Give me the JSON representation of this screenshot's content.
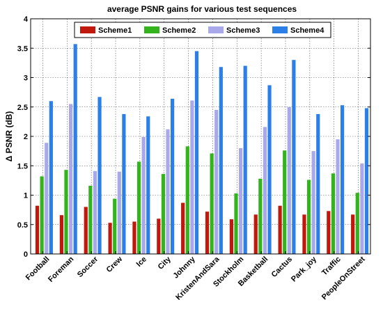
{
  "chart_data": {
    "type": "bar",
    "title": "average PSNR gains for various test sequences",
    "xlabel": "",
    "ylabel": "Δ PSNR  (dB)",
    "ylim": [
      0,
      4
    ],
    "yticks": [
      "0",
      "0.5",
      "1",
      "1.5",
      "2",
      "2.5",
      "3",
      "3.5",
      "4"
    ],
    "grid": true,
    "legend_position": "top",
    "categories": [
      "Football",
      "Foreman",
      "Soccer",
      "Crew",
      "Ice",
      "City",
      "Johnny",
      "KristenAndSara",
      "Stockholm",
      "Basketball",
      "Cactus",
      "Park_joy",
      "Traffic",
      "PeopleOnStreet"
    ],
    "series": [
      {
        "name": "Scheme1",
        "color": "#c0180c",
        "values": [
          0.82,
          0.66,
          0.8,
          0.53,
          0.55,
          0.6,
          0.87,
          0.72,
          0.59,
          0.67,
          0.82,
          0.67,
          0.73,
          0.67
        ]
      },
      {
        "name": "Scheme2",
        "color": "#33b41c",
        "values": [
          1.32,
          1.43,
          1.16,
          0.94,
          1.57,
          1.36,
          1.83,
          1.71,
          1.03,
          1.28,
          1.76,
          1.26,
          1.37,
          1.04
        ]
      },
      {
        "name": "Scheme3",
        "color": "#a8a8ea",
        "values": [
          1.89,
          2.55,
          1.41,
          1.4,
          1.99,
          2.12,
          2.61,
          2.45,
          1.8,
          2.16,
          2.5,
          1.75,
          1.95,
          1.54
        ]
      },
      {
        "name": "Scheme4",
        "color": "#2b7fe6",
        "values": [
          2.6,
          3.57,
          2.67,
          2.38,
          2.34,
          2.64,
          3.45,
          3.18,
          3.2,
          2.87,
          3.3,
          2.38,
          2.53,
          2.48
        ]
      }
    ]
  }
}
